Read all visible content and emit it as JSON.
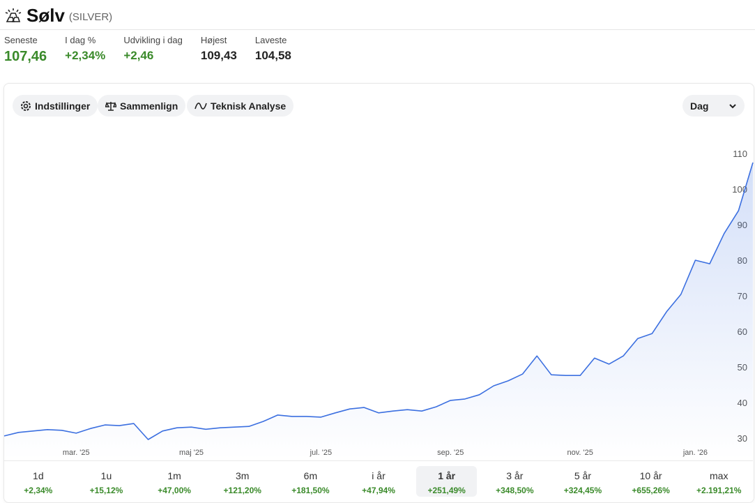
{
  "header": {
    "title": "Sølv",
    "subtitle": "(SILVER)"
  },
  "stats": [
    {
      "label": "Seneste",
      "value": "107,46",
      "tone": "green"
    },
    {
      "label": "I dag %",
      "value": "+2,34%",
      "tone": "green"
    },
    {
      "label": "Udvikling i dag",
      "value": "+2,46",
      "tone": "green"
    },
    {
      "label": "Højest",
      "value": "109,43",
      "tone": "dark"
    },
    {
      "label": "Laveste",
      "value": "104,58",
      "tone": "dark"
    }
  ],
  "toolbar": {
    "buttons": [
      "Indstillinger",
      "Sammenlign",
      "Teknisk Analyse"
    ],
    "period_select": "Dag"
  },
  "chart_data": {
    "type": "line",
    "categories": [
      null,
      null,
      null,
      null,
      null,
      "mar. '25",
      null,
      null,
      null,
      null,
      null,
      null,
      null,
      "maj '25",
      null,
      null,
      null,
      null,
      null,
      null,
      null,
      null,
      "jul. '25",
      null,
      null,
      null,
      null,
      null,
      null,
      null,
      null,
      "sep. '25",
      null,
      null,
      null,
      null,
      null,
      null,
      null,
      null,
      "nov. '25",
      null,
      null,
      null,
      null,
      null,
      null,
      null,
      "jan. '26",
      null,
      null,
      null,
      null
    ],
    "series": [
      {
        "color": "#3b6fe0",
        "values": [
          30.6,
          31.6,
          32,
          32.4,
          32.2,
          31.4,
          32.7,
          33.7,
          33.5,
          34.1,
          29.6,
          32,
          32.9,
          33.1,
          32.5,
          32.9,
          33.1,
          33.3,
          34.7,
          36.5,
          36.1,
          36.1,
          35.9,
          37.1,
          38.2,
          38.6,
          37.1,
          37.6,
          38,
          37.6,
          38.8,
          40.6,
          41,
          42.2,
          44.7,
          46.1,
          48,
          53.1,
          47.8,
          47.6,
          47.6,
          52.5,
          50.8,
          53.1,
          58,
          59.4,
          65.5,
          70.4,
          80,
          79,
          87.5,
          93.9,
          107.46
        ]
      }
    ],
    "ylim": [
      24,
      116
    ],
    "yticks": [
      30,
      40,
      50,
      60,
      70,
      80,
      90,
      100,
      110
    ],
    "grid": false
  },
  "periods": [
    {
      "label": "1d",
      "change": "+2,34%"
    },
    {
      "label": "1u",
      "change": "+15,12%"
    },
    {
      "label": "1m",
      "change": "+47,00%"
    },
    {
      "label": "3m",
      "change": "+121,20%"
    },
    {
      "label": "6m",
      "change": "+181,50%"
    },
    {
      "label": "i år",
      "change": "+47,94%"
    },
    {
      "label": "1 år",
      "change": "+251,49%",
      "selected": true
    },
    {
      "label": "3 år",
      "change": "+348,50%"
    },
    {
      "label": "5 år",
      "change": "+324,45%"
    },
    {
      "label": "10 år",
      "change": "+655,26%"
    },
    {
      "label": "max",
      "change": "+2.191,21%"
    }
  ]
}
